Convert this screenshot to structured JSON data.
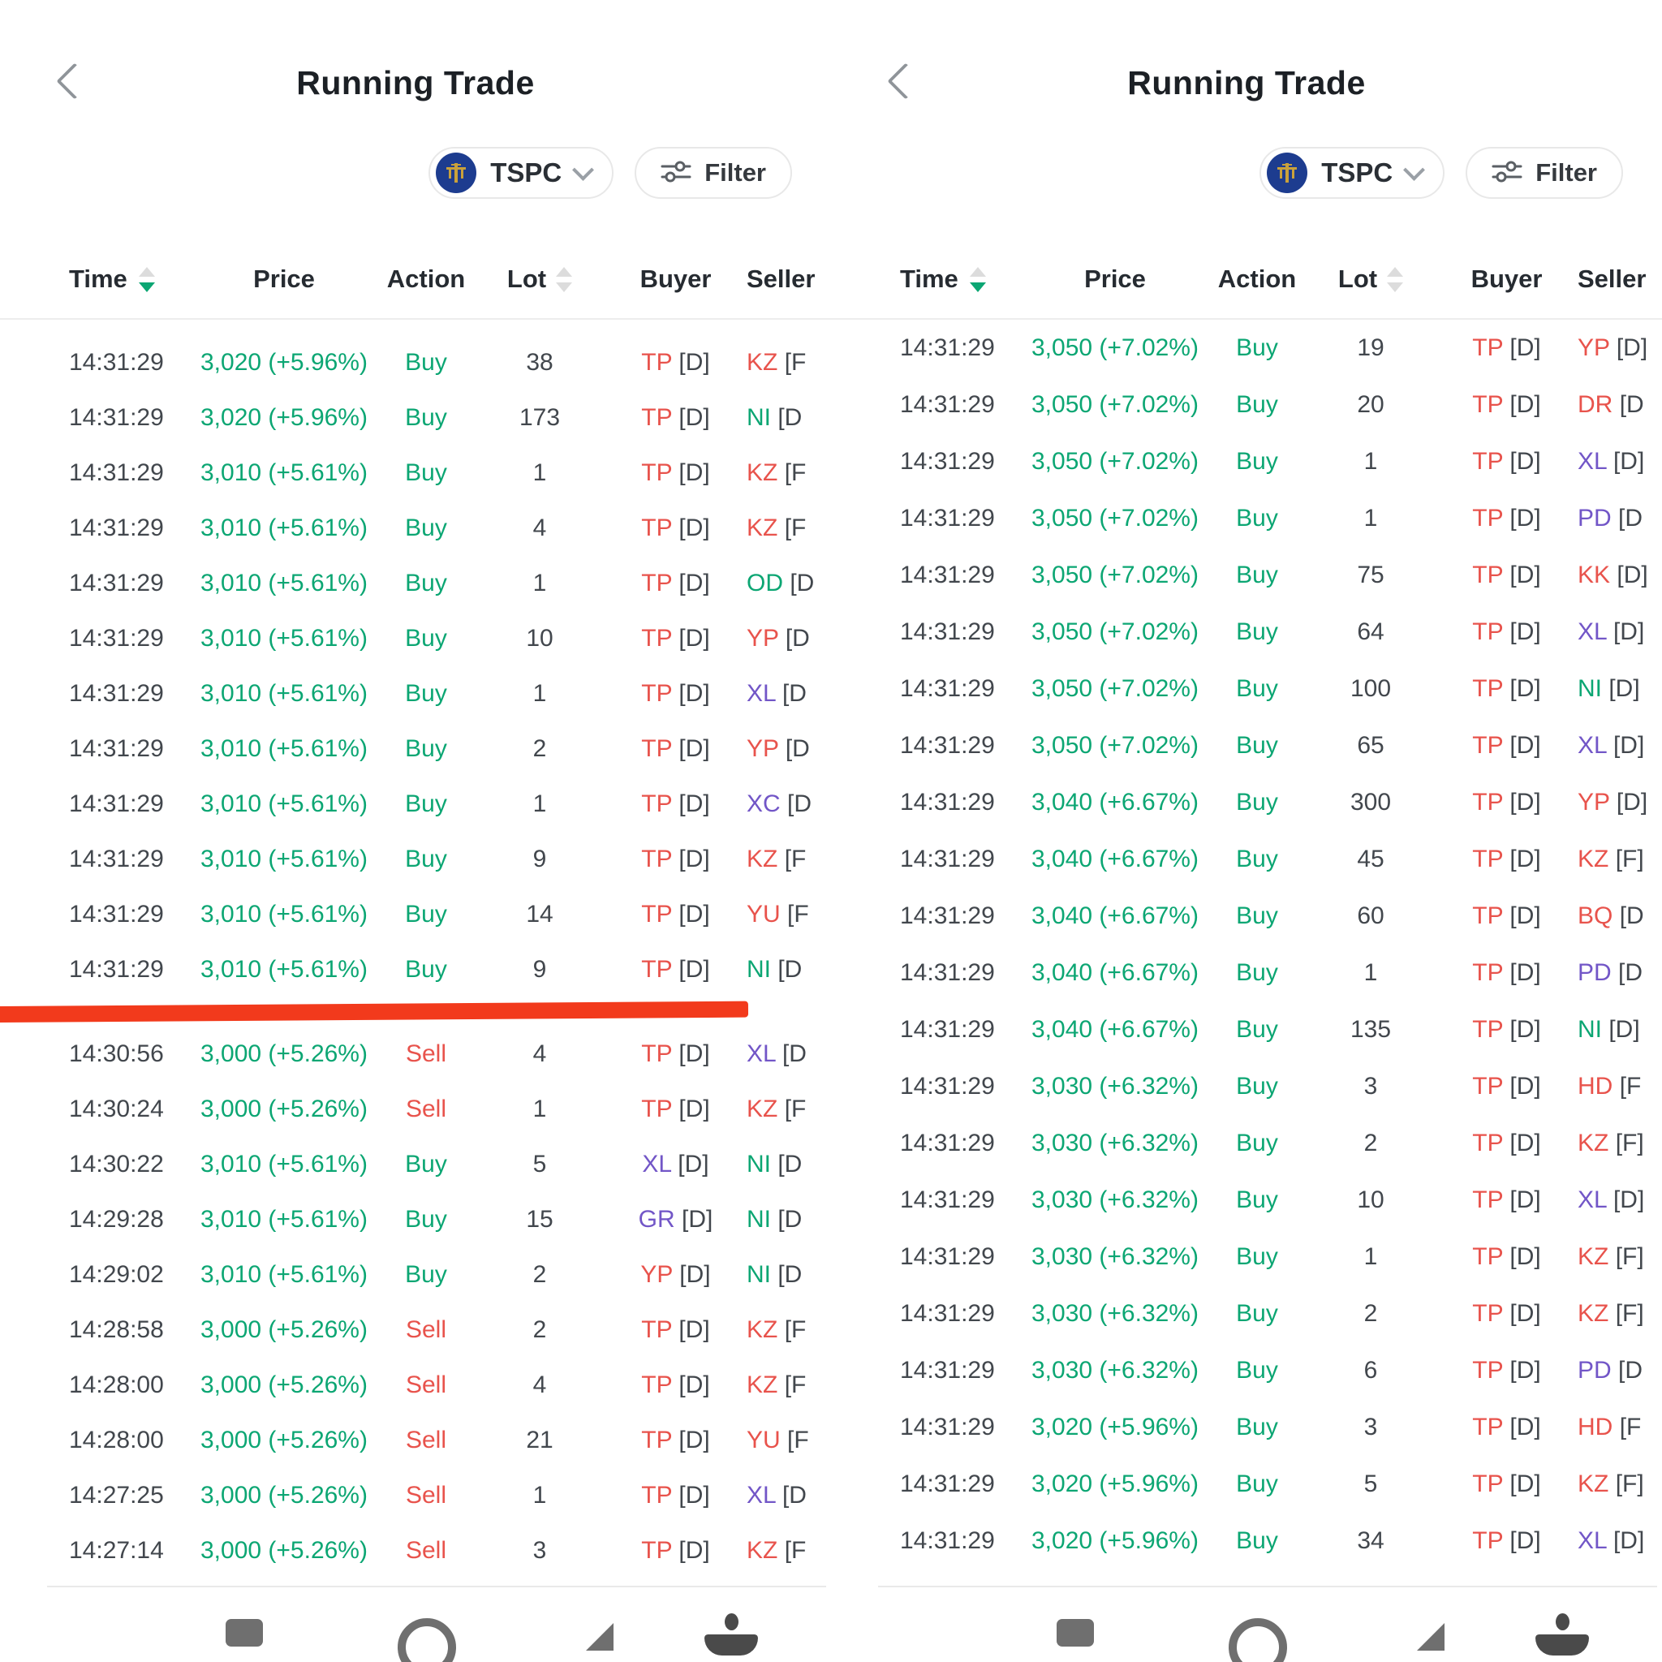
{
  "app": {
    "title": "Running Trade"
  },
  "toolbar": {
    "stock_symbol": "TSPC",
    "filter_label": "Filter"
  },
  "table": {
    "columns": [
      "Time",
      "Price",
      "Action",
      "Lot",
      "Buyer",
      "Seller"
    ],
    "sort": {
      "column": "Time",
      "direction": "desc"
    }
  },
  "palette": {
    "green": "#0ca673",
    "red": "#e8534c",
    "purple": "#7256c7",
    "dark": "#42474d",
    "red_line": "#f23a1c",
    "logo_bg": "#1d3c8f",
    "logo_gold": "#c9a13b"
  },
  "broker_colors": {
    "TP": "red",
    "KZ": "red",
    "NI": "green",
    "OD": "green",
    "YP": "red",
    "XL": "purple",
    "XC": "purple",
    "YU": "red",
    "GR": "purple",
    "DR": "red",
    "PD": "purple",
    "KK": "red",
    "BQ": "red",
    "HD": "red"
  },
  "panels": [
    {
      "id": "left",
      "red_line_after_row": 12,
      "rows": [
        {
          "time": "14:31:29",
          "price": "3,020 (+5.96%)",
          "action": "Buy",
          "lot": "38",
          "buyer": "TP",
          "buyer_tag": "[D]",
          "seller": "KZ",
          "seller_tag": "[F"
        },
        {
          "time": "14:31:29",
          "price": "3,020 (+5.96%)",
          "action": "Buy",
          "lot": "173",
          "buyer": "TP",
          "buyer_tag": "[D]",
          "seller": "NI",
          "seller_tag": "[D"
        },
        {
          "time": "14:31:29",
          "price": "3,010 (+5.61%)",
          "action": "Buy",
          "lot": "1",
          "buyer": "TP",
          "buyer_tag": "[D]",
          "seller": "KZ",
          "seller_tag": "[F"
        },
        {
          "time": "14:31:29",
          "price": "3,010 (+5.61%)",
          "action": "Buy",
          "lot": "4",
          "buyer": "TP",
          "buyer_tag": "[D]",
          "seller": "KZ",
          "seller_tag": "[F"
        },
        {
          "time": "14:31:29",
          "price": "3,010 (+5.61%)",
          "action": "Buy",
          "lot": "1",
          "buyer": "TP",
          "buyer_tag": "[D]",
          "seller": "OD",
          "seller_tag": "[D"
        },
        {
          "time": "14:31:29",
          "price": "3,010 (+5.61%)",
          "action": "Buy",
          "lot": "10",
          "buyer": "TP",
          "buyer_tag": "[D]",
          "seller": "YP",
          "seller_tag": "[D"
        },
        {
          "time": "14:31:29",
          "price": "3,010 (+5.61%)",
          "action": "Buy",
          "lot": "1",
          "buyer": "TP",
          "buyer_tag": "[D]",
          "seller": "XL",
          "seller_tag": "[D"
        },
        {
          "time": "14:31:29",
          "price": "3,010 (+5.61%)",
          "action": "Buy",
          "lot": "2",
          "buyer": "TP",
          "buyer_tag": "[D]",
          "seller": "YP",
          "seller_tag": "[D"
        },
        {
          "time": "14:31:29",
          "price": "3,010 (+5.61%)",
          "action": "Buy",
          "lot": "1",
          "buyer": "TP",
          "buyer_tag": "[D]",
          "seller": "XC",
          "seller_tag": "[D"
        },
        {
          "time": "14:31:29",
          "price": "3,010 (+5.61%)",
          "action": "Buy",
          "lot": "9",
          "buyer": "TP",
          "buyer_tag": "[D]",
          "seller": "KZ",
          "seller_tag": "[F"
        },
        {
          "time": "14:31:29",
          "price": "3,010 (+5.61%)",
          "action": "Buy",
          "lot": "14",
          "buyer": "TP",
          "buyer_tag": "[D]",
          "seller": "YU",
          "seller_tag": "[F"
        },
        {
          "time": "14:31:29",
          "price": "3,010 (+5.61%)",
          "action": "Buy",
          "lot": "9",
          "buyer": "TP",
          "buyer_tag": "[D]",
          "seller": "NI",
          "seller_tag": "[D"
        },
        {
          "time": "14:30:56",
          "price": "3,000 (+5.26%)",
          "action": "Sell",
          "lot": "4",
          "buyer": "TP",
          "buyer_tag": "[D]",
          "seller": "XL",
          "seller_tag": "[D"
        },
        {
          "time": "14:30:24",
          "price": "3,000 (+5.26%)",
          "action": "Sell",
          "lot": "1",
          "buyer": "TP",
          "buyer_tag": "[D]",
          "seller": "KZ",
          "seller_tag": "[F"
        },
        {
          "time": "14:30:22",
          "price": "3,010 (+5.61%)",
          "action": "Buy",
          "lot": "5",
          "buyer": "XL",
          "buyer_tag": "[D]",
          "seller": "NI",
          "seller_tag": "[D"
        },
        {
          "time": "14:29:28",
          "price": "3,010 (+5.61%)",
          "action": "Buy",
          "lot": "15",
          "buyer": "GR",
          "buyer_tag": "[D]",
          "seller": "NI",
          "seller_tag": "[D"
        },
        {
          "time": "14:29:02",
          "price": "3,010 (+5.61%)",
          "action": "Buy",
          "lot": "2",
          "buyer": "YP",
          "buyer_tag": "[D]",
          "seller": "NI",
          "seller_tag": "[D"
        },
        {
          "time": "14:28:58",
          "price": "3,000 (+5.26%)",
          "action": "Sell",
          "lot": "2",
          "buyer": "TP",
          "buyer_tag": "[D]",
          "seller": "KZ",
          "seller_tag": "[F"
        },
        {
          "time": "14:28:00",
          "price": "3,000 (+5.26%)",
          "action": "Sell",
          "lot": "4",
          "buyer": "TP",
          "buyer_tag": "[D]",
          "seller": "KZ",
          "seller_tag": "[F"
        },
        {
          "time": "14:28:00",
          "price": "3,000 (+5.26%)",
          "action": "Sell",
          "lot": "21",
          "buyer": "TP",
          "buyer_tag": "[D]",
          "seller": "YU",
          "seller_tag": "[F"
        },
        {
          "time": "14:27:25",
          "price": "3,000 (+5.26%)",
          "action": "Sell",
          "lot": "1",
          "buyer": "TP",
          "buyer_tag": "[D]",
          "seller": "XL",
          "seller_tag": "[D"
        },
        {
          "time": "14:27:14",
          "price": "3,000 (+5.26%)",
          "action": "Sell",
          "lot": "3",
          "buyer": "TP",
          "buyer_tag": "[D]",
          "seller": "KZ",
          "seller_tag": "[F"
        }
      ]
    },
    {
      "id": "right",
      "rows": [
        {
          "time": "14:31:29",
          "price": "3,050 (+7.02%)",
          "action": "Buy",
          "lot": "19",
          "buyer": "TP",
          "buyer_tag": "[D]",
          "seller": "YP",
          "seller_tag": "[D]"
        },
        {
          "time": "14:31:29",
          "price": "3,050 (+7.02%)",
          "action": "Buy",
          "lot": "20",
          "buyer": "TP",
          "buyer_tag": "[D]",
          "seller": "DR",
          "seller_tag": "[D"
        },
        {
          "time": "14:31:29",
          "price": "3,050 (+7.02%)",
          "action": "Buy",
          "lot": "1",
          "buyer": "TP",
          "buyer_tag": "[D]",
          "seller": "XL",
          "seller_tag": "[D]"
        },
        {
          "time": "14:31:29",
          "price": "3,050 (+7.02%)",
          "action": "Buy",
          "lot": "1",
          "buyer": "TP",
          "buyer_tag": "[D]",
          "seller": "PD",
          "seller_tag": "[D"
        },
        {
          "time": "14:31:29",
          "price": "3,050 (+7.02%)",
          "action": "Buy",
          "lot": "75",
          "buyer": "TP",
          "buyer_tag": "[D]",
          "seller": "KK",
          "seller_tag": "[D]"
        },
        {
          "time": "14:31:29",
          "price": "3,050 (+7.02%)",
          "action": "Buy",
          "lot": "64",
          "buyer": "TP",
          "buyer_tag": "[D]",
          "seller": "XL",
          "seller_tag": "[D]"
        },
        {
          "time": "14:31:29",
          "price": "3,050 (+7.02%)",
          "action": "Buy",
          "lot": "100",
          "buyer": "TP",
          "buyer_tag": "[D]",
          "seller": "NI",
          "seller_tag": "[D]"
        },
        {
          "time": "14:31:29",
          "price": "3,050 (+7.02%)",
          "action": "Buy",
          "lot": "65",
          "buyer": "TP",
          "buyer_tag": "[D]",
          "seller": "XL",
          "seller_tag": "[D]"
        },
        {
          "time": "14:31:29",
          "price": "3,040 (+6.67%)",
          "action": "Buy",
          "lot": "300",
          "buyer": "TP",
          "buyer_tag": "[D]",
          "seller": "YP",
          "seller_tag": "[D]"
        },
        {
          "time": "14:31:29",
          "price": "3,040 (+6.67%)",
          "action": "Buy",
          "lot": "45",
          "buyer": "TP",
          "buyer_tag": "[D]",
          "seller": "KZ",
          "seller_tag": "[F]"
        },
        {
          "time": "14:31:29",
          "price": "3,040 (+6.67%)",
          "action": "Buy",
          "lot": "60",
          "buyer": "TP",
          "buyer_tag": "[D]",
          "seller": "BQ",
          "seller_tag": "[D"
        },
        {
          "time": "14:31:29",
          "price": "3,040 (+6.67%)",
          "action": "Buy",
          "lot": "1",
          "buyer": "TP",
          "buyer_tag": "[D]",
          "seller": "PD",
          "seller_tag": "[D"
        },
        {
          "time": "14:31:29",
          "price": "3,040 (+6.67%)",
          "action": "Buy",
          "lot": "135",
          "buyer": "TP",
          "buyer_tag": "[D]",
          "seller": "NI",
          "seller_tag": "[D]"
        },
        {
          "time": "14:31:29",
          "price": "3,030 (+6.32%)",
          "action": "Buy",
          "lot": "3",
          "buyer": "TP",
          "buyer_tag": "[D]",
          "seller": "HD",
          "seller_tag": "[F"
        },
        {
          "time": "14:31:29",
          "price": "3,030 (+6.32%)",
          "action": "Buy",
          "lot": "2",
          "buyer": "TP",
          "buyer_tag": "[D]",
          "seller": "KZ",
          "seller_tag": "[F]"
        },
        {
          "time": "14:31:29",
          "price": "3,030 (+6.32%)",
          "action": "Buy",
          "lot": "10",
          "buyer": "TP",
          "buyer_tag": "[D]",
          "seller": "XL",
          "seller_tag": "[D]"
        },
        {
          "time": "14:31:29",
          "price": "3,030 (+6.32%)",
          "action": "Buy",
          "lot": "1",
          "buyer": "TP",
          "buyer_tag": "[D]",
          "seller": "KZ",
          "seller_tag": "[F]"
        },
        {
          "time": "14:31:29",
          "price": "3,030 (+6.32%)",
          "action": "Buy",
          "lot": "2",
          "buyer": "TP",
          "buyer_tag": "[D]",
          "seller": "KZ",
          "seller_tag": "[F]"
        },
        {
          "time": "14:31:29",
          "price": "3,030 (+6.32%)",
          "action": "Buy",
          "lot": "6",
          "buyer": "TP",
          "buyer_tag": "[D]",
          "seller": "PD",
          "seller_tag": "[D"
        },
        {
          "time": "14:31:29",
          "price": "3,020 (+5.96%)",
          "action": "Buy",
          "lot": "3",
          "buyer": "TP",
          "buyer_tag": "[D]",
          "seller": "HD",
          "seller_tag": "[F"
        },
        {
          "time": "14:31:29",
          "price": "3,020 (+5.96%)",
          "action": "Buy",
          "lot": "5",
          "buyer": "TP",
          "buyer_tag": "[D]",
          "seller": "KZ",
          "seller_tag": "[F]"
        },
        {
          "time": "14:31:29",
          "price": "3,020 (+5.96%)",
          "action": "Buy",
          "lot": "34",
          "buyer": "TP",
          "buyer_tag": "[D]",
          "seller": "XL",
          "seller_tag": "[D]"
        }
      ]
    }
  ]
}
